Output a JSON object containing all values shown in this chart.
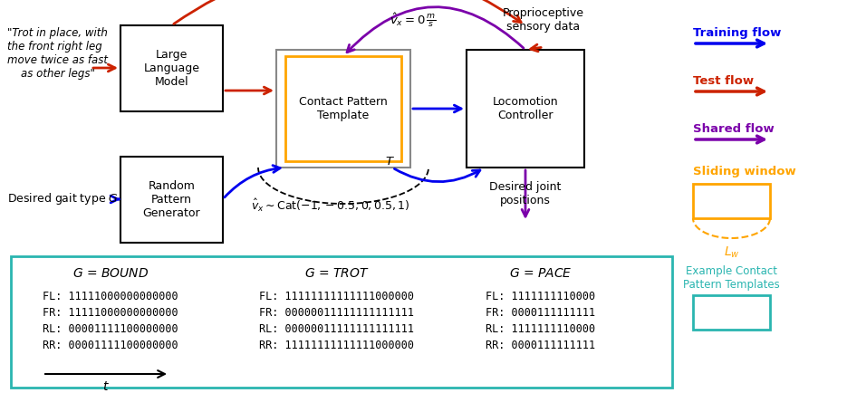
{
  "bg_color": "#ffffff",
  "teal_color": "#2ab5b0",
  "orange_color": "#FFA500",
  "blue_color": "#0000EE",
  "red_color": "#CC2200",
  "purple_color": "#7B00AA",
  "black_color": "#000000",
  "italic_text": "\"Trot in place, with\nthe front right leg\nmove twice as fast\n    as other legs\"",
  "desired_gait_text": "Desired gait type $G$",
  "llm_box_text": "Large\nLanguage\nModel",
  "cpt_box_text": "Contact Pattern\nTemplate",
  "lc_box_text": "Locomotion\nController",
  "rpg_box_text": "Random\nPattern\nGenerator",
  "propr_text": "Proprioceptive\nsensory data",
  "desired_joint_text": "Desired joint\npositions",
  "vhat_eq_text": "$\\hat{v}_x = 0\\,\\frac{m}{s}$",
  "vhat_cat_text": "$\\hat{v}_x \\sim \\mathrm{Cat}(-1, -0.5, 0, 0.5, 1)$",
  "T_text": "$T$",
  "Lw_text": "$L_w$",
  "training_flow_text": "Training flow",
  "test_flow_text": "Test flow",
  "shared_flow_text": "Shared flow",
  "sliding_window_text": "Sliding window",
  "example_contact_text": "Example Contact\nPattern Templates",
  "bound_header": "$G$ = BOUND",
  "trot_header": "$G$ = TROT",
  "pace_header": "$G$ = PACE",
  "bound_lines": "FL: 11111000000000000\nFR: 11111000000000000\nRL: 00001111100000000\nRR: 00001111100000000",
  "trot_lines": "FL: 11111111111111000000\nFR: 00000011111111111111\nRL: 00000011111111111111\nRR: 11111111111111000000",
  "pace_lines": "FL: 1111111110000\nFR: 0000111111111\nRL: 1111111110000\nRR: 0000111111111"
}
